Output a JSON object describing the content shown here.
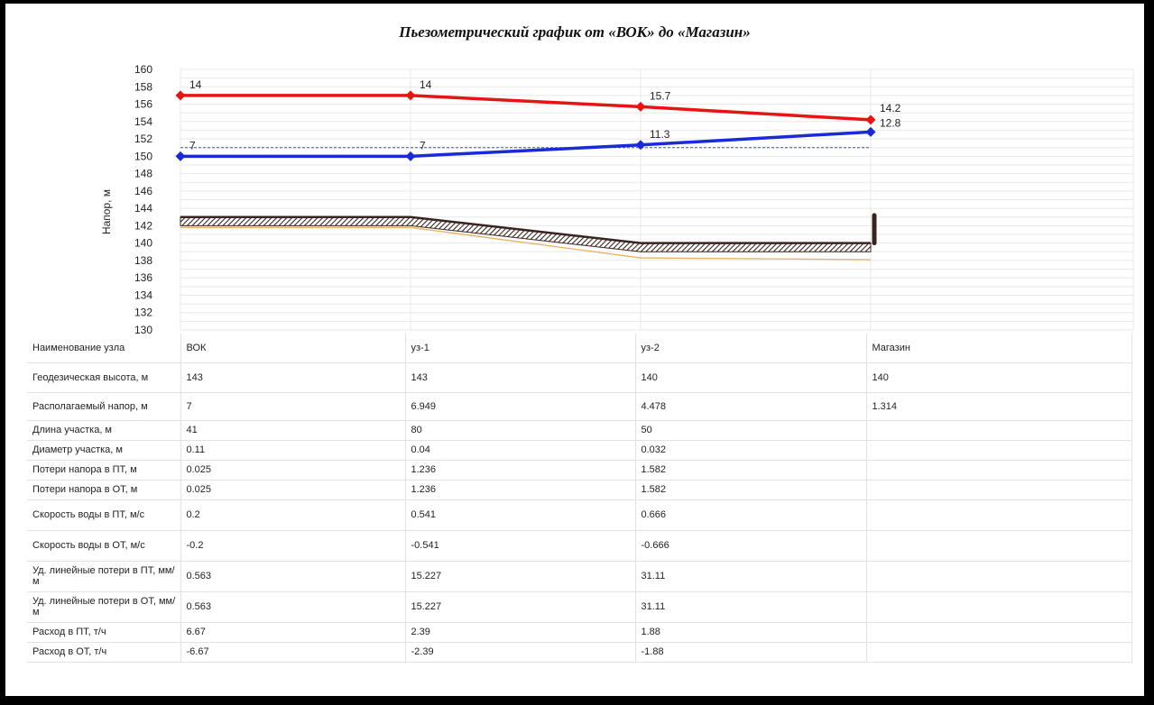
{
  "colors": {
    "supply": "#e81414",
    "return": "#1a2ad6",
    "static": "#3a5a8a",
    "ground": "#3a2420",
    "pipe": "#e8b060",
    "grid": "#e8e8e8"
  },
  "chart_data": {
    "type": "line",
    "title": "Пьезометрический график от «ВОК» до «Магазин»",
    "ylabel": "Напор, м",
    "xlabel": "",
    "ylim": [
      130,
      160
    ],
    "yticks": [
      130,
      132,
      134,
      136,
      138,
      140,
      142,
      144,
      146,
      148,
      150,
      152,
      154,
      156,
      158,
      160
    ],
    "categories": [
      "ВОК",
      "уз-1",
      "уз-2",
      "Магазин"
    ],
    "series": [
      {
        "key": "supply",
        "values": [
          157,
          157,
          155.7,
          154.2
        ],
        "labels": [
          "14",
          "14",
          "15.7",
          "14.2"
        ]
      },
      {
        "key": "return",
        "values": [
          150,
          150,
          151.3,
          152.8
        ],
        "labels": [
          "7",
          "7",
          "11.3",
          "12.8"
        ]
      },
      {
        "key": "static",
        "values": [
          151,
          151,
          151,
          151
        ]
      },
      {
        "key": "ground",
        "values": [
          143,
          143,
          140,
          140
        ]
      },
      {
        "key": "pipe",
        "values": [
          141.8,
          141.8,
          138.3,
          138.1
        ]
      }
    ],
    "grid": true
  },
  "table": {
    "rows": [
      {
        "name": "Наименование узла",
        "cells": [
          "ВОК",
          "уз-1",
          "уз-2",
          "Магазин"
        ]
      },
      {
        "name": "Геодезическая высота, м",
        "cells": [
          "143",
          "143",
          "140",
          "140"
        ]
      },
      {
        "name": "Располагаемый напор, м",
        "cells": [
          "7",
          "6.949",
          "4.478",
          "1.314"
        ]
      },
      {
        "name": "Длина участка, м",
        "cells": [
          "41",
          "80",
          "50",
          ""
        ]
      },
      {
        "name": "Диаметр участка, м",
        "cells": [
          "0.11",
          "0.04",
          "0.032",
          ""
        ]
      },
      {
        "name": "Потери напора в ПТ, м",
        "cells": [
          "0.025",
          "1.236",
          "1.582",
          ""
        ]
      },
      {
        "name": "Потери напора в ОТ, м",
        "cells": [
          "0.025",
          "1.236",
          "1.582",
          ""
        ]
      },
      {
        "name": "Скорость воды в ПТ, м/с",
        "cells": [
          "0.2",
          "0.541",
          "0.666",
          ""
        ]
      },
      {
        "name": "Скорость воды в ОТ, м/с",
        "cells": [
          "-0.2",
          "-0.541",
          "-0.666",
          ""
        ]
      },
      {
        "name": "Уд. линейные потери в ПТ, мм/м",
        "cells": [
          "0.563",
          "15.227",
          "31.11",
          ""
        ]
      },
      {
        "name": "Уд. линейные потери в ОТ, мм/м",
        "cells": [
          "0.563",
          "15.227",
          "31.11",
          ""
        ]
      },
      {
        "name": "Расход в ПТ, т/ч",
        "cells": [
          "6.67",
          "2.39",
          "1.88",
          ""
        ]
      },
      {
        "name": "Расход в ОТ, т/ч",
        "cells": [
          "-6.67",
          "-2.39",
          "-1.88",
          ""
        ]
      }
    ]
  }
}
